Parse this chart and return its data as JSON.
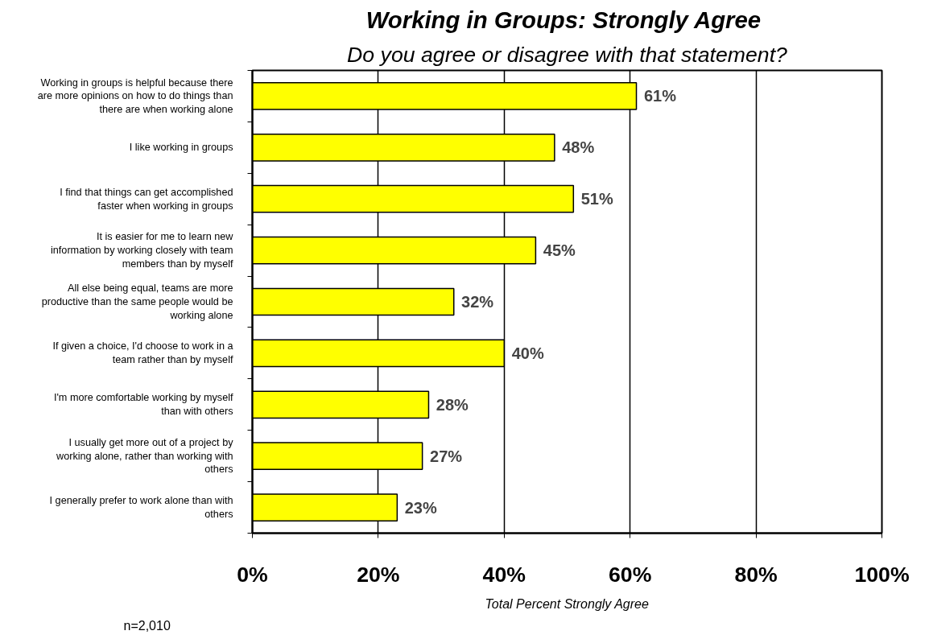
{
  "chart_data": {
    "type": "bar",
    "orientation": "horizontal",
    "title": "Working in Groups:  Strongly Agree",
    "subtitle": "Do you agree or disagree with that statement?",
    "categories": [
      "Working in groups is helpful because there are more opinions on how to do things than there are when working alone",
      "I like working in groups",
      "I find that things can get accomplished faster when working in groups",
      "It is easier for me to learn new information by working closely with team members than by myself",
      "All else being equal, teams are more productive than the same people would be working alone",
      "If given a choice, I'd choose to work in a team rather than by myself",
      "I'm more comfortable working by myself than with others",
      "I usually get more out of a project by working alone, rather than working with others",
      "I generally prefer to work alone than with others"
    ],
    "values": [
      61,
      48,
      51,
      45,
      32,
      40,
      28,
      27,
      23
    ],
    "color": "#ffff00",
    "value_labels": [
      "61%",
      "48%",
      "51%",
      "45%",
      "32%",
      "40%",
      "28%",
      "27%",
      "23%"
    ],
    "xlim": [
      0,
      100
    ],
    "xticks": [
      {
        "value": 0,
        "label": "0%"
      },
      {
        "value": 20,
        "label": "20%"
      },
      {
        "value": 40,
        "label": "40%"
      },
      {
        "value": 60,
        "label": "60%"
      },
      {
        "value": 80,
        "label": "80%"
      },
      {
        "value": 100,
        "label": "100%"
      }
    ],
    "xlabel": "Total Percent Strongly Agree",
    "annotations": [
      "n=2,010"
    ],
    "grid": "x"
  }
}
